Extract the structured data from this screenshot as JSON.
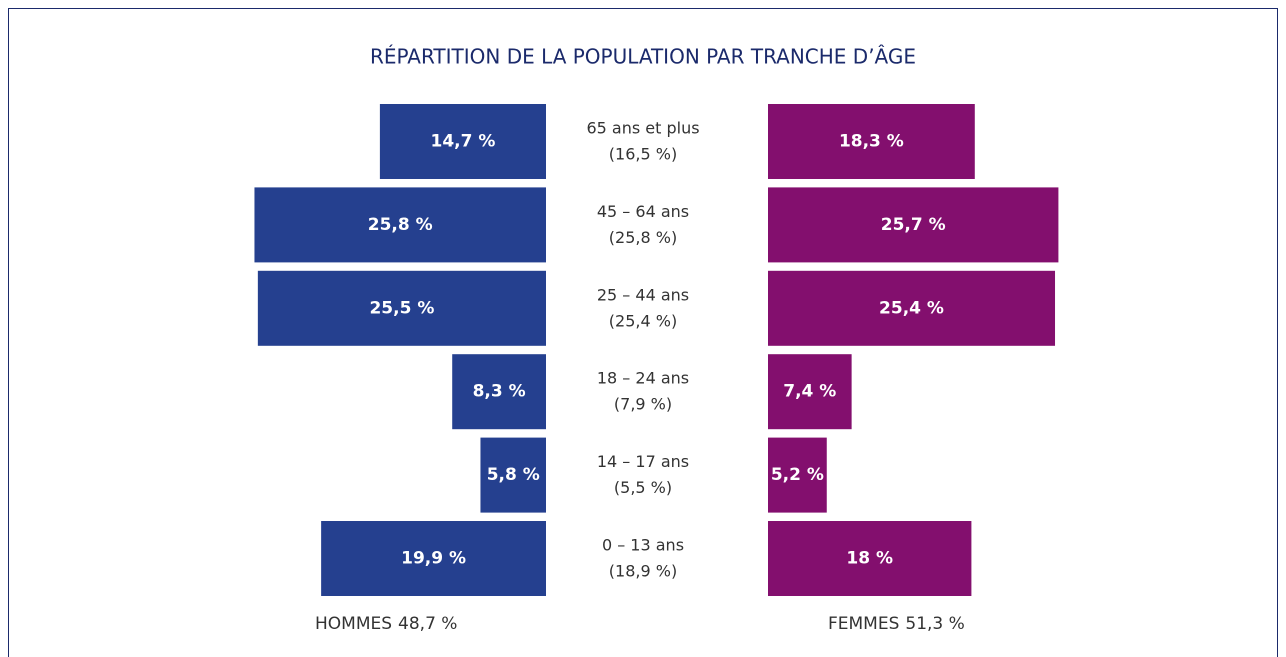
{
  "chart_data": {
    "type": "pyramid",
    "title": "RÉPARTITION DE LA POPULATION PAR TRANCHE D’ÂGE",
    "categories": [
      "65 ans et plus",
      "45 – 64 ans",
      "25 – 44 ans",
      "18 – 24 ans",
      "14 – 17 ans",
      "0 – 13 ans"
    ],
    "category_totals": {
      "values": [
        16.5,
        25.8,
        25.4,
        7.9,
        5.5,
        18.9
      ],
      "value_labels": [
        "(16,5 %)",
        "(25,8 %)",
        "(25,4 %)",
        "(7,9 %)",
        "(5,5 %)",
        "(18,9 %)"
      ]
    },
    "series": [
      {
        "name": "HOMMES",
        "color": "#25408f",
        "total": 48.7,
        "total_label": "48,7 %",
        "values": [
          14.7,
          25.8,
          25.5,
          8.3,
          5.8,
          19.9
        ],
        "value_labels": [
          "14,7 %",
          "25,8 %",
          "25,5 %",
          "8,3 %",
          "5,8 %",
          "19,9 %"
        ]
      },
      {
        "name": "FEMMES",
        "color": "#830f6e",
        "total": 51.3,
        "total_label": "51,3 %",
        "values": [
          18.3,
          25.7,
          25.4,
          7.4,
          5.2,
          18
        ],
        "value_labels": [
          "18,3 %",
          "25,7 %",
          "25,4 %",
          "7,4 %",
          "5,2 %",
          "18 %"
        ]
      }
    ]
  }
}
